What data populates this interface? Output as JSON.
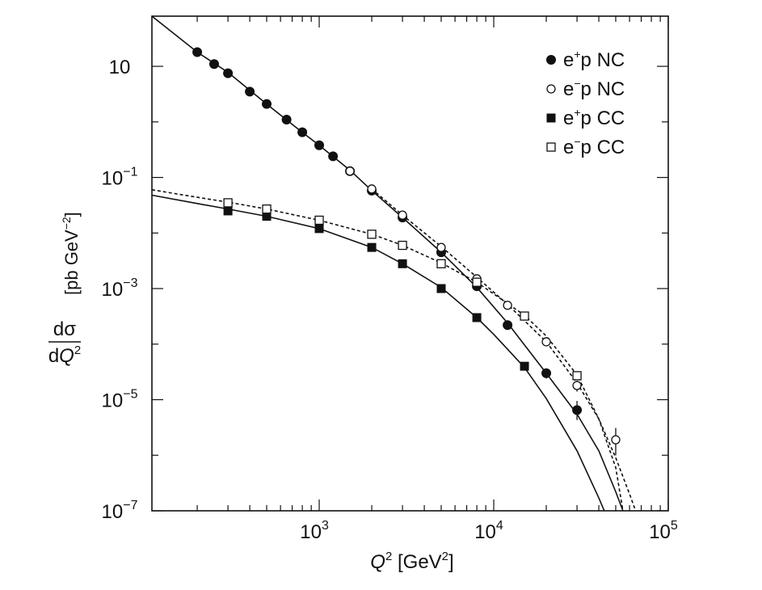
{
  "chart_data": {
    "type": "scatter",
    "title": "",
    "x_axis": {
      "label": "Q2 [GeV2]",
      "label_parts": {
        "q": "Q",
        "sup1": "2",
        "unit_open": " [GeV",
        "sup2": "2",
        "unit_close": "]"
      },
      "scale": "log",
      "range": [
        110,
        100000
      ],
      "ticks": [
        {
          "value": 1000,
          "base": "10",
          "exp": "3"
        },
        {
          "value": 10000,
          "base": "10",
          "exp": "4"
        },
        {
          "value": 100000,
          "base": "10",
          "exp": "5"
        }
      ]
    },
    "y_axis": {
      "label": "dσ/dQ2 [pb GeV−2]",
      "label_parts": {
        "num": "dσ",
        "den_d": "d",
        "den_q": "Q",
        "den_sup": "2",
        "unit_open": "[pb GeV",
        "unit_sup": "−2",
        "unit_close": "]"
      },
      "scale": "log",
      "range": [
        1e-07,
        80
      ],
      "ticks": [
        {
          "value": 10,
          "base": "10",
          "exp": ""
        },
        {
          "value": 0.1,
          "base": "10",
          "exp": "−1"
        },
        {
          "value": 0.001,
          "base": "10",
          "exp": "−3"
        },
        {
          "value": 1e-05,
          "base": "10",
          "exp": "−5"
        },
        {
          "value": 1e-07,
          "base": "10",
          "exp": "−7"
        }
      ]
    },
    "legend": {
      "placement": "top-right",
      "entries": [
        {
          "label_a": "e",
          "sup": "+",
          "label_b": "p NC",
          "marker": "filled-circle"
        },
        {
          "label_a": "e",
          "sup": "−",
          "label_b": "p NC",
          "marker": "open-circle"
        },
        {
          "label_a": "e",
          "sup": "+",
          "label_b": "p CC",
          "marker": "filled-square"
        },
        {
          "label_a": "e",
          "sup": "−",
          "label_b": "p CC",
          "marker": "open-square"
        }
      ]
    },
    "series": [
      {
        "name": "e+p NC",
        "marker": "filled-circle",
        "points": [
          [
            200,
            18
          ],
          [
            250,
            11
          ],
          [
            300,
            7.5
          ],
          [
            400,
            3.5
          ],
          [
            500,
            2.1
          ],
          [
            650,
            1.1
          ],
          [
            800,
            0.65
          ],
          [
            1000,
            0.38
          ],
          [
            1200,
            0.24
          ],
          [
            1500,
            0.13
          ],
          [
            2000,
            0.058
          ],
          [
            3000,
            0.019
          ],
          [
            5000,
            0.0045
          ],
          [
            8000,
            0.0011
          ],
          [
            12000,
            0.00022
          ],
          [
            20000,
            3e-05
          ],
          [
            30000,
            6.5e-06
          ]
        ]
      },
      {
        "name": "e−p NC",
        "marker": "open-circle",
        "points": [
          [
            1500,
            0.13
          ],
          [
            2000,
            0.062
          ],
          [
            3000,
            0.021
          ],
          [
            5000,
            0.0055
          ],
          [
            8000,
            0.0015
          ],
          [
            12000,
            0.0005
          ],
          [
            20000,
            0.00011
          ],
          [
            30000,
            1.8e-05
          ],
          [
            50000,
            1.9e-06
          ]
        ]
      },
      {
        "name": "e+p CC",
        "marker": "filled-square",
        "points": [
          [
            300,
            0.025
          ],
          [
            500,
            0.02
          ],
          [
            1000,
            0.012
          ],
          [
            2000,
            0.0055
          ],
          [
            3000,
            0.0028
          ],
          [
            5000,
            0.001
          ],
          [
            8000,
            0.0003
          ],
          [
            15000,
            4e-05
          ]
        ]
      },
      {
        "name": "e−p CC",
        "marker": "open-square",
        "points": [
          [
            300,
            0.035
          ],
          [
            500,
            0.027
          ],
          [
            1000,
            0.017
          ],
          [
            2000,
            0.0095
          ],
          [
            3000,
            0.006
          ],
          [
            5000,
            0.0028
          ],
          [
            8000,
            0.0013
          ],
          [
            15000,
            0.00032
          ],
          [
            30000,
            2.7e-05
          ]
        ]
      }
    ],
    "curves": [
      {
        "style": "solid",
        "points": [
          [
            110,
            80
          ],
          [
            200,
            18
          ],
          [
            300,
            7.8
          ],
          [
            500,
            2.1
          ],
          [
            800,
            0.65
          ],
          [
            1000,
            0.38
          ],
          [
            1500,
            0.135
          ],
          [
            2000,
            0.058
          ],
          [
            3000,
            0.019
          ],
          [
            5000,
            0.0045
          ],
          [
            8000,
            0.00105
          ],
          [
            12000,
            0.00024
          ],
          [
            20000,
            3e-05
          ],
          [
            30000,
            5.5e-06
          ],
          [
            40000,
            1.2e-06
          ],
          [
            50000,
            2.2e-07
          ],
          [
            55000,
            1e-07
          ]
        ]
      },
      {
        "style": "dotted",
        "points": [
          [
            2000,
            0.062
          ],
          [
            3000,
            0.021
          ],
          [
            5000,
            0.0057
          ],
          [
            8000,
            0.0016
          ],
          [
            12000,
            0.00052
          ],
          [
            20000,
            0.00011
          ],
          [
            30000,
            2e-05
          ],
          [
            40000,
            4.5e-06
          ],
          [
            50000,
            9e-07
          ],
          [
            60000,
            2e-07
          ],
          [
            65000,
            1e-07
          ]
        ]
      },
      {
        "style": "solid",
        "points": [
          [
            110,
            0.048
          ],
          [
            200,
            0.034
          ],
          [
            300,
            0.027
          ],
          [
            500,
            0.02
          ],
          [
            1000,
            0.012
          ],
          [
            2000,
            0.0055
          ],
          [
            3000,
            0.0028
          ],
          [
            5000,
            0.00105
          ],
          [
            8000,
            0.0003
          ],
          [
            10000,
            0.00015
          ],
          [
            15000,
            3.8e-05
          ],
          [
            20000,
            1.05e-05
          ],
          [
            30000,
            1.2e-06
          ],
          [
            40000,
            1.7e-07
          ],
          [
            43000,
            1e-07
          ]
        ]
      },
      {
        "style": "dotted",
        "points": [
          [
            110,
            0.06
          ],
          [
            200,
            0.044
          ],
          [
            300,
            0.036
          ],
          [
            500,
            0.027
          ],
          [
            1000,
            0.017
          ],
          [
            2000,
            0.0095
          ],
          [
            3000,
            0.006
          ],
          [
            5000,
            0.0029
          ],
          [
            8000,
            0.0013
          ],
          [
            15000,
            0.00033
          ],
          [
            20000,
            0.00014
          ],
          [
            30000,
            2.8e-05
          ],
          [
            40000,
            4.5e-06
          ],
          [
            50000,
            6e-07
          ],
          [
            55000,
            1e-07
          ]
        ]
      }
    ],
    "error_bars": [
      {
        "x": 30000,
        "y_low": 4.3e-06,
        "y_high": 9.5e-06
      },
      {
        "x": 30000,
        "y_low": 1.4e-05,
        "y_high": 2.2e-05
      },
      {
        "x": 50000,
        "y_low": 1e-06,
        "y_high": 3.1e-06
      },
      {
        "x": 20000,
        "y_low": 2.4e-05,
        "y_high": 3.6e-05
      }
    ],
    "grid": false
  }
}
